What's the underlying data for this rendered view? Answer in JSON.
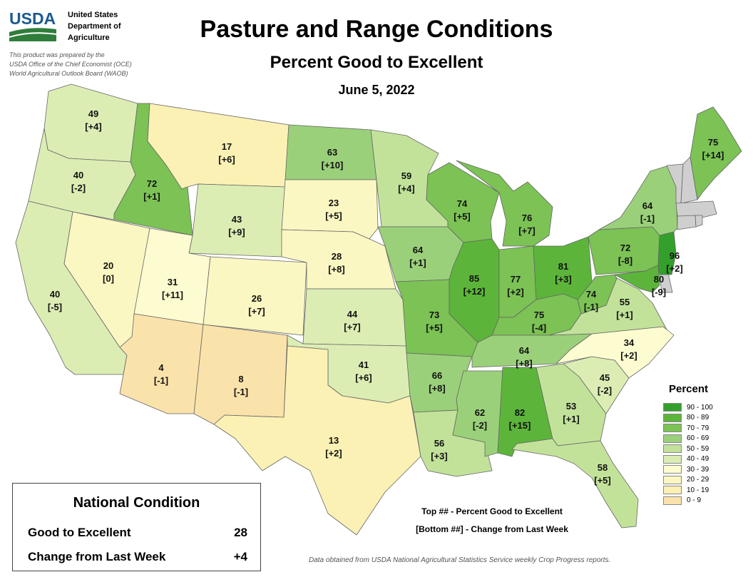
{
  "header": {
    "org_line1": "United States",
    "org_line2": "Department of",
    "org_line3": "Agriculture",
    "logo_text": "USDA",
    "credit_line1": "This product was prepared by the",
    "credit_line2": "USDA Office of the Chief Economist (OCE)",
    "credit_line3": "World Agricultural Outlook Board (WAOB)",
    "title": "Pasture and Range Conditions",
    "subtitle": "Percent Good to Excellent",
    "date": "June 5, 2022"
  },
  "legend": {
    "title": "Percent",
    "bins": [
      {
        "label": "90 - 100",
        "color": "#33a02c"
      },
      {
        "label": "80 - 89",
        "color": "#5cb53a"
      },
      {
        "label": "70 - 79",
        "color": "#7cc255"
      },
      {
        "label": "60 - 69",
        "color": "#9bd07a"
      },
      {
        "label": "50 - 59",
        "color": "#c2e29a"
      },
      {
        "label": "40 - 49",
        "color": "#dcedb4"
      },
      {
        "label": "30 - 39",
        "color": "#fdfbd0"
      },
      {
        "label": "20 - 29",
        "color": "#fbf7c2"
      },
      {
        "label": "10 - 19",
        "color": "#fbf1b4"
      },
      {
        "label": "0 - 9",
        "color": "#fae2ab"
      }
    ],
    "no_data_color": "#cfcfcf"
  },
  "states": {
    "WA": {
      "value": 49,
      "change": "[+4]"
    },
    "OR": {
      "value": 40,
      "change": "[-2]"
    },
    "CA": {
      "value": 40,
      "change": "[-5]"
    },
    "ID": {
      "value": 72,
      "change": "[+1]"
    },
    "NV": {
      "value": 20,
      "change": "[0]"
    },
    "MT": {
      "value": 17,
      "change": "[+6]"
    },
    "WY": {
      "value": 43,
      "change": "[+9]"
    },
    "UT": {
      "value": 31,
      "change": "[+11]"
    },
    "AZ": {
      "value": 4,
      "change": "[-1]"
    },
    "CO": {
      "value": 26,
      "change": "[+7]"
    },
    "NM": {
      "value": 8,
      "change": "[-1]"
    },
    "ND": {
      "value": 63,
      "change": "[+10]"
    },
    "SD": {
      "value": 23,
      "change": "[+5]"
    },
    "NE": {
      "value": 28,
      "change": "[+8]"
    },
    "KS": {
      "value": 44,
      "change": "[+7]"
    },
    "OK": {
      "value": 41,
      "change": "[+6]"
    },
    "TX": {
      "value": 13,
      "change": "[+2]"
    },
    "MN": {
      "value": 59,
      "change": "[+4]"
    },
    "IA": {
      "value": 64,
      "change": "[+1]"
    },
    "MO": {
      "value": 73,
      "change": "[+5]"
    },
    "AR": {
      "value": 66,
      "change": "[+8]"
    },
    "LA": {
      "value": 56,
      "change": "[+3]"
    },
    "WI": {
      "value": 74,
      "change": "[+5]"
    },
    "IL": {
      "value": 85,
      "change": "[+12]"
    },
    "MI": {
      "value": 76,
      "change": "[+7]"
    },
    "IN": {
      "value": 77,
      "change": "[+2]"
    },
    "OH": {
      "value": 81,
      "change": "[+3]"
    },
    "KY": {
      "value": 75,
      "change": "[-4]"
    },
    "TN": {
      "value": 64,
      "change": "[+8]"
    },
    "MS": {
      "value": 62,
      "change": "[-2]"
    },
    "AL": {
      "value": 82,
      "change": "[+15]"
    },
    "GA": {
      "value": 53,
      "change": "[+1]"
    },
    "FL": {
      "value": 58,
      "change": "[+5]"
    },
    "SC": {
      "value": 45,
      "change": "[-2]"
    },
    "NC": {
      "value": 34,
      "change": "[+2]"
    },
    "VA": {
      "value": 55,
      "change": "[+1]"
    },
    "WV": {
      "value": 74,
      "change": "[-1]"
    },
    "MD": {
      "value": 80,
      "change": "[-9]"
    },
    "NJ": {
      "value": 96,
      "change": "[+2]"
    },
    "PA": {
      "value": 72,
      "change": "[-8]"
    },
    "NY": {
      "value": 64,
      "change": "[-1]"
    },
    "ME": {
      "value": 75,
      "change": "[+14]"
    },
    "DE": {
      "value": null,
      "change": null
    },
    "VT": {
      "value": null,
      "change": null
    },
    "NH": {
      "value": null,
      "change": null
    },
    "MA": {
      "value": null,
      "change": null
    },
    "CT": {
      "value": null,
      "change": null
    },
    "RI": {
      "value": null,
      "change": null
    }
  },
  "national": {
    "title": "National Condition",
    "good_label": "Good to Excellent",
    "good_value": "28",
    "change_label": "Change from Last Week",
    "change_value": "+4"
  },
  "key_line1": "Top ## - Percent Good to Excellent",
  "key_line2": "[Bottom ##] - Change from Last Week",
  "source": "Data obtained from USDA National Agricultural Statistics Service weekly Crop Progress reports."
}
